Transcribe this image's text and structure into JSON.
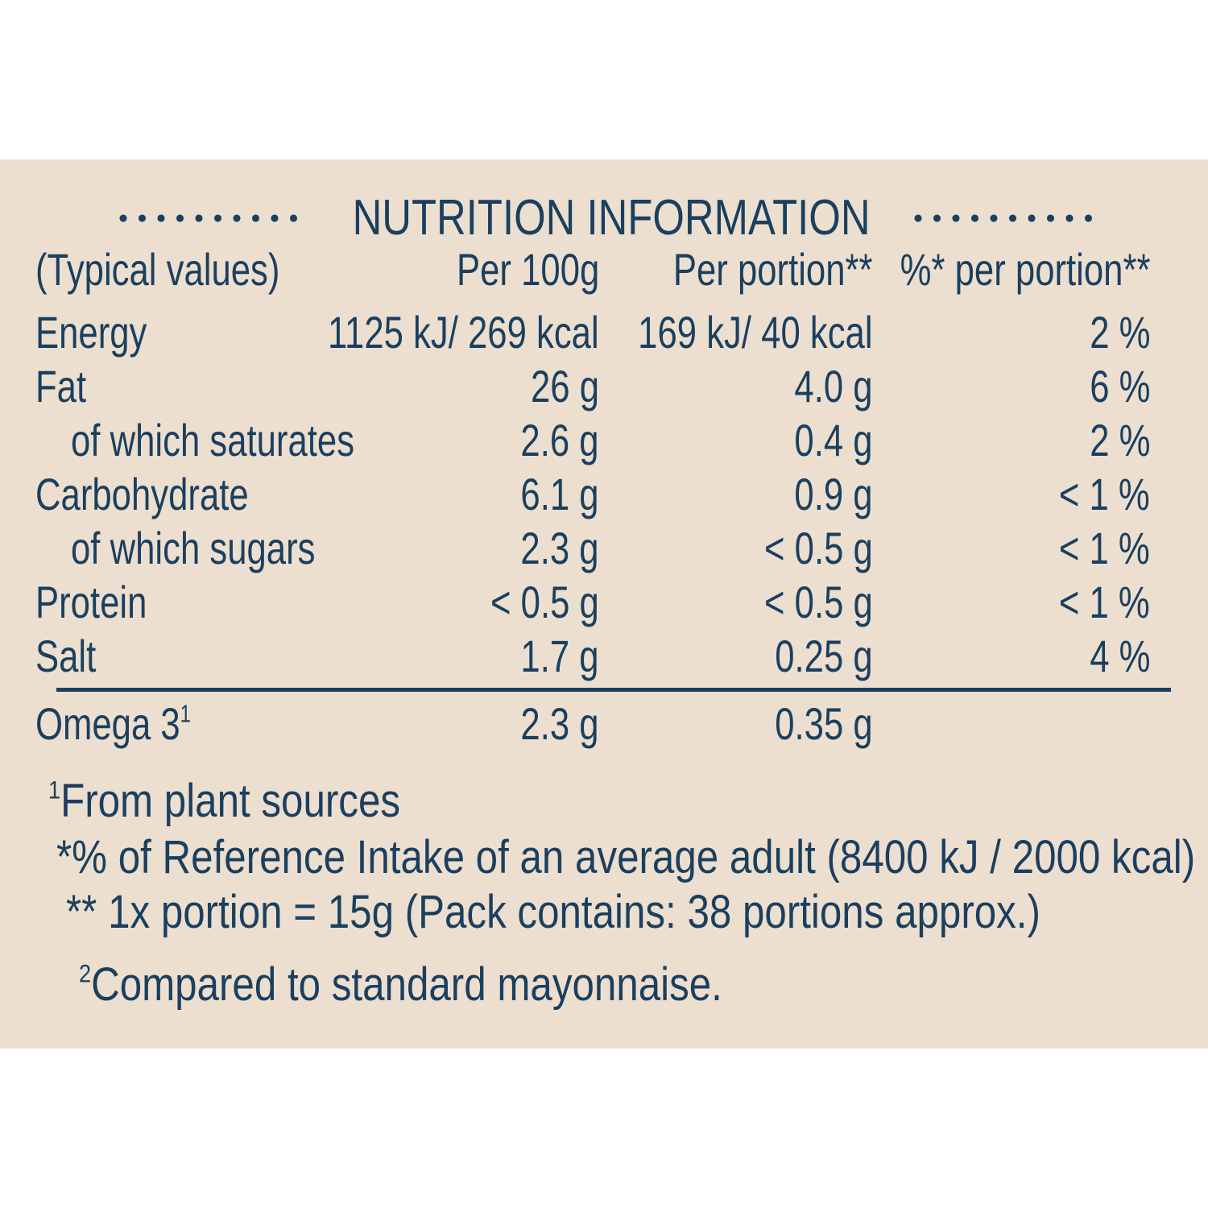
{
  "title": "NUTRITION INFORMATION",
  "headers": [
    "(Typical values)",
    "Per 100g",
    "Per portion**",
    "%* per portion**"
  ],
  "rows": [
    {
      "name": "Energy",
      "per100": "1125 kJ/ 269 kcal",
      "perPortion": "169 kJ/ 40 kcal",
      "ri": "2 %"
    },
    {
      "name": "Fat",
      "per100": "26 g",
      "perPortion": "4.0 g",
      "ri": "6 %"
    },
    {
      "name": "of which saturates",
      "per100": "2.6 g",
      "perPortion": "0.4 g",
      "ri": "2 %"
    },
    {
      "name": "Carbohydrate",
      "per100": "6.1 g",
      "perPortion": "0.9 g",
      "ri": "< 1 %"
    },
    {
      "name": "of which sugars",
      "per100": "2.3 g",
      "perPortion": "< 0.5 g",
      "ri": "< 1 %"
    },
    {
      "name": "Protein",
      "per100": "< 0.5 g",
      "perPortion": "< 0.5 g",
      "ri": "< 1 %"
    },
    {
      "name": "Salt",
      "per100": "1.7 g",
      "perPortion": "0.25 g",
      "ri": "4 %"
    }
  ],
  "omega": {
    "name": "Omega 3",
    "sup": "1",
    "per100": "2.3 g",
    "perPortion": "0.35 g"
  },
  "footnotes": {
    "plant_sup": "1",
    "plant": "From plant sources",
    "reference": "*% of Reference Intake of an average adult (8400 kJ / 2000 kcal)",
    "portion": "** 1x portion = 15g (Pack contains: 38 portions approx.)",
    "compare_sup": "2",
    "compare": "Compared to standard mayonnaise."
  },
  "colors": {
    "background": "#ecdfd0",
    "text": "#1b3f5e"
  }
}
